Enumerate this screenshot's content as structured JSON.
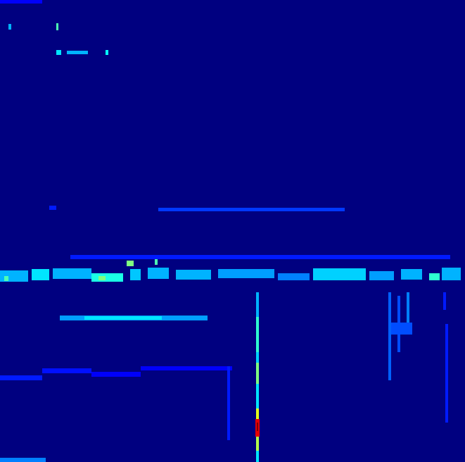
{
  "chart_data": {
    "type": "heatmap",
    "xlim": [
      0,
      661
    ],
    "ylim": [
      0,
      656
    ],
    "zlim": [
      0,
      1
    ],
    "tick_labels": false,
    "cells": [
      [
        0,
        661,
        0,
        656,
        0
      ],
      [
        0,
        60,
        0,
        5,
        0.12
      ],
      [
        12,
        16,
        34,
        42,
        0.3
      ],
      [
        80,
        83,
        33,
        43,
        0.45
      ],
      [
        80,
        87,
        71,
        78,
        0.35
      ],
      [
        95,
        125,
        72,
        77,
        0.3
      ],
      [
        150,
        154,
        71,
        78,
        0.38
      ],
      [
        70,
        80,
        292,
        298,
        0.15
      ],
      [
        225,
        490,
        295,
        300,
        0.18
      ],
      [
        100,
        640,
        362,
        368,
        0.15
      ],
      [
        0,
        40,
        384,
        400,
        0.3
      ],
      [
        45,
        70,
        382,
        398,
        0.35
      ],
      [
        75,
        130,
        381,
        396,
        0.3
      ],
      [
        130,
        175,
        388,
        400,
        0.4
      ],
      [
        180,
        190,
        370,
        378,
        0.5
      ],
      [
        185,
        200,
        382,
        398,
        0.32
      ],
      [
        210,
        240,
        380,
        396,
        0.3
      ],
      [
        250,
        300,
        383,
        397,
        0.3
      ],
      [
        310,
        390,
        382,
        395,
        0.28
      ],
      [
        395,
        440,
        388,
        398,
        0.25
      ],
      [
        445,
        520,
        381,
        398,
        0.33
      ],
      [
        525,
        560,
        385,
        398,
        0.28
      ],
      [
        570,
        600,
        382,
        397,
        0.3
      ],
      [
        610,
        625,
        388,
        398,
        0.42
      ],
      [
        628,
        655,
        380,
        398,
        0.3
      ],
      [
        140,
        150,
        392,
        398,
        0.5
      ],
      [
        220,
        224,
        368,
        376,
        0.45
      ],
      [
        6,
        12,
        392,
        399,
        0.45
      ],
      [
        85,
        295,
        448,
        455,
        0.28
      ],
      [
        120,
        230,
        449,
        454,
        0.35
      ],
      [
        552,
        556,
        415,
        540,
        0.22
      ],
      [
        565,
        569,
        420,
        500,
        0.2
      ],
      [
        578,
        582,
        415,
        470,
        0.25
      ],
      [
        556,
        586,
        458,
        475,
        0.2
      ],
      [
        633,
        637,
        460,
        600,
        0.15
      ],
      [
        630,
        634,
        415,
        440,
        0.15
      ],
      [
        0,
        60,
        533,
        540,
        0.15
      ],
      [
        60,
        130,
        523,
        530,
        0.14
      ],
      [
        130,
        200,
        528,
        535,
        0.12
      ],
      [
        200,
        330,
        520,
        526,
        0.12
      ],
      [
        323,
        327,
        520,
        625,
        0.15
      ],
      [
        0,
        65,
        650,
        656,
        0.25
      ],
      [
        364,
        368,
        415,
        450,
        0.3
      ],
      [
        364,
        368,
        450,
        500,
        0.42
      ],
      [
        364,
        368,
        500,
        515,
        0.33
      ],
      [
        364,
        368,
        515,
        545,
        0.5
      ],
      [
        364,
        368,
        545,
        580,
        0.35
      ],
      [
        364,
        368,
        580,
        595,
        0.6
      ],
      [
        363,
        369,
        595,
        620,
        0.9
      ],
      [
        365,
        367,
        600,
        612,
        1.0
      ],
      [
        364,
        368,
        620,
        640,
        0.55
      ],
      [
        364,
        368,
        640,
        656,
        0.35
      ]
    ]
  }
}
